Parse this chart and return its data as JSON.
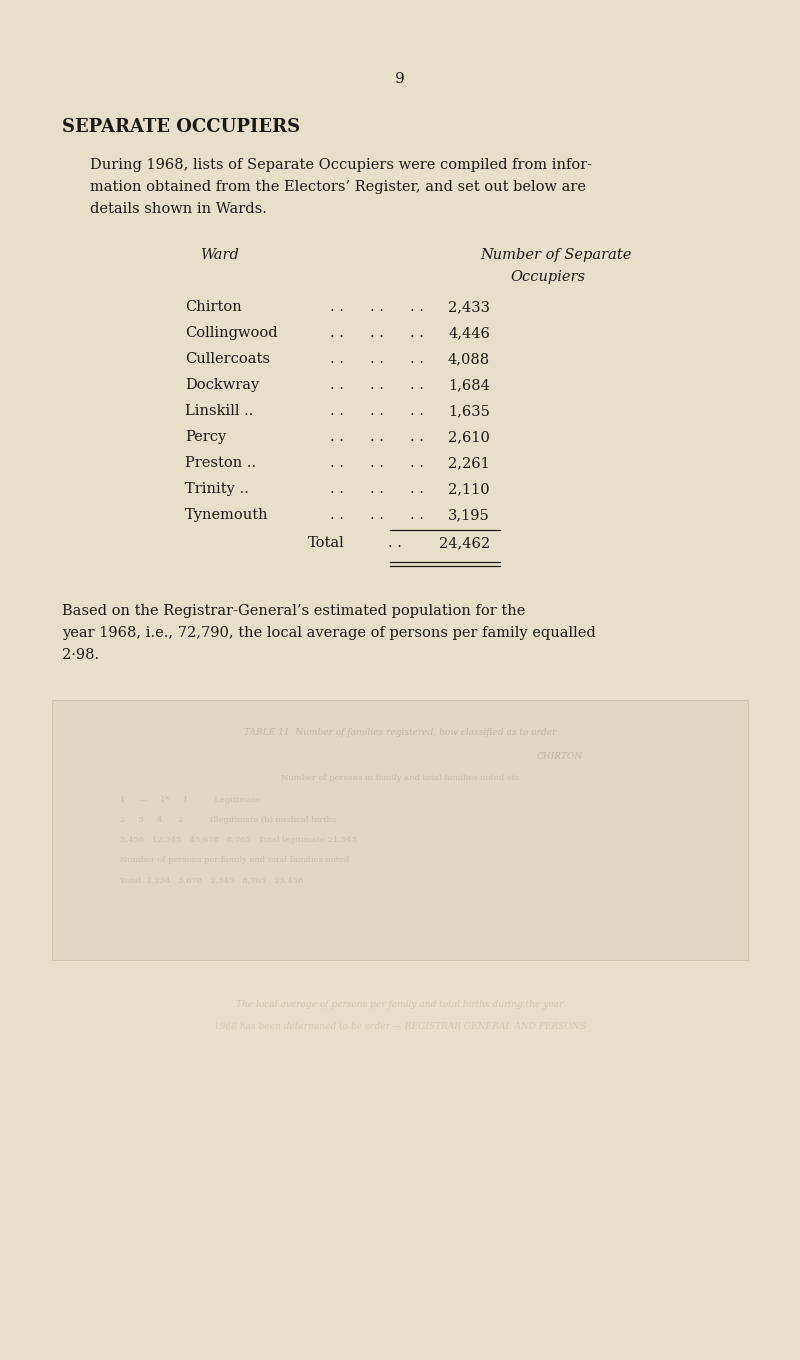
{
  "page_number": "9",
  "background_color": "#e8dfc8",
  "title": "SEPARATE OCCUPIERS",
  "intro_line1": "During 1968, lists of Separate Occupiers were compiled from infor-",
  "intro_line2": "mation obtained from the Electors’ Register, and set out below are",
  "intro_line3": "details shown in Wards.",
  "col_header_1": "Ward",
  "col_header_2a": "Number of Separate",
  "col_header_2b": "Occupiers",
  "wards": [
    "Chirton",
    "Collingwood",
    "Cullercoats",
    "Dockwray",
    "Linskill ..",
    "Percy",
    "Preston ..",
    "Trinity ..",
    "Tynemouth"
  ],
  "values": [
    "2,433",
    "4,446",
    "4,088",
    "1,684",
    "1,635",
    "2,610",
    "2,261",
    "2,110",
    "3,195"
  ],
  "total_label": "Total",
  "total_value": "24,462",
  "footer_line1": "Based on the Registrar-General’s estimated population for the",
  "footer_line2": "year 1968, i.e., 72,790, the local average of persons per family equalled",
  "footer_line3": "2·98.",
  "text_color": "#1a1a1a",
  "faded_text_color": "#8a7a60"
}
